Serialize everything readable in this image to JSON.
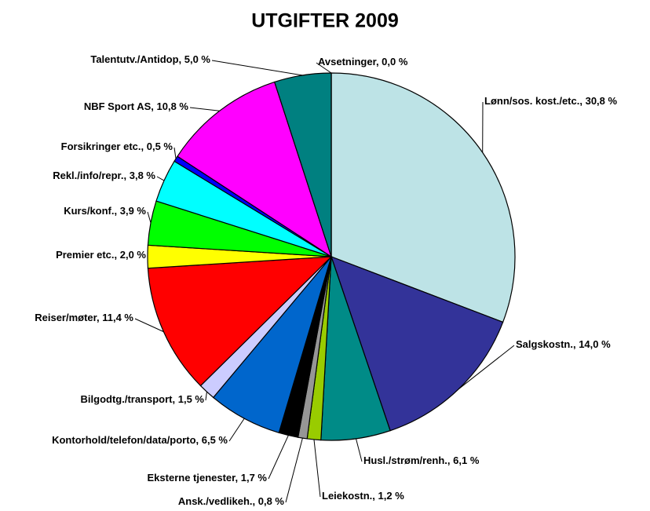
{
  "chart_data": {
    "type": "pie",
    "title": "UTGIFTER 2009",
    "label_separator": ", ",
    "categories": [
      "Lønn/sos. kost./etc.",
      "Salgskostn.",
      "Husl./strøm/renh.",
      "Leiekostn.",
      "Ansk./vedlikeh.",
      "Eksterne tjenester",
      "Kontorhold/telefon/data/porto",
      "Bilgodtg./transport",
      "Reiser/møter",
      "Premier etc.",
      "Kurs/konf.",
      "Rekl./info/repr.",
      "Forsikringer etc.",
      "NBF Sport AS",
      "Talentutv./Antidop",
      "Avsetninger"
    ],
    "values": [
      30.8,
      14.0,
      6.1,
      1.2,
      0.8,
      1.7,
      6.5,
      1.5,
      11.4,
      2.0,
      3.9,
      3.8,
      0.5,
      10.8,
      5.0,
      0.0
    ],
    "value_labels": [
      "30,8 %",
      "14,0 %",
      "6,1 %",
      "1,2 %",
      "0,8 %",
      "1,7 %",
      "6,5 %",
      "1,5 %",
      "11,4 %",
      "2,0 %",
      "3,9 %",
      "3,8 %",
      "0,5 %",
      "10,8 %",
      "5,0 %",
      "0,0 %"
    ],
    "colors": [
      "#bde3e6",
      "#333399",
      "#008b87",
      "#99cc00",
      "#969696",
      "#000000",
      "#0066cc",
      "#ccccff",
      "#ff0000",
      "#ffff00",
      "#00ff00",
      "#00ffff",
      "#0000ff",
      "#ff00ff",
      "#008080",
      "#808080"
    ]
  }
}
